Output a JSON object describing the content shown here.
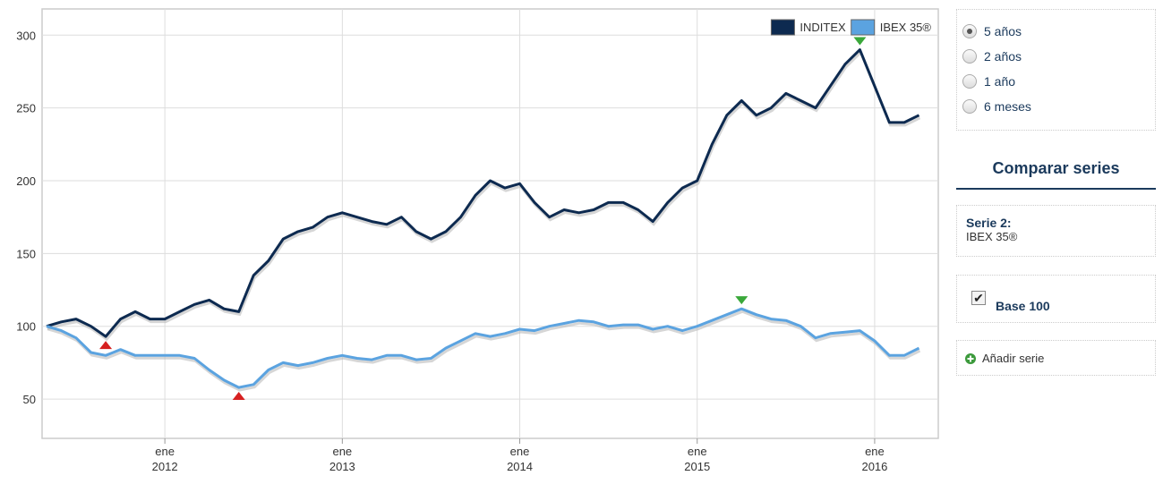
{
  "chart_data": {
    "type": "line",
    "x": [
      "2011-05",
      "2011-06",
      "2011-07",
      "2011-08",
      "2011-09",
      "2011-10",
      "2011-11",
      "2011-12",
      "2012-01",
      "2012-02",
      "2012-03",
      "2012-04",
      "2012-05",
      "2012-06",
      "2012-07",
      "2012-08",
      "2012-09",
      "2012-10",
      "2012-11",
      "2012-12",
      "2013-01",
      "2013-02",
      "2013-03",
      "2013-04",
      "2013-05",
      "2013-06",
      "2013-07",
      "2013-08",
      "2013-09",
      "2013-10",
      "2013-11",
      "2013-12",
      "2014-01",
      "2014-02",
      "2014-03",
      "2014-04",
      "2014-05",
      "2014-06",
      "2014-07",
      "2014-08",
      "2014-09",
      "2014-10",
      "2014-11",
      "2014-12",
      "2015-01",
      "2015-02",
      "2015-03",
      "2015-04",
      "2015-05",
      "2015-06",
      "2015-07",
      "2015-08",
      "2015-09",
      "2015-10",
      "2015-11",
      "2015-12",
      "2016-01",
      "2016-02",
      "2016-03",
      "2016-04"
    ],
    "series": [
      {
        "name": "INDITEX",
        "color": "#0d2a50",
        "values": [
          100,
          103,
          105,
          100,
          93,
          105,
          110,
          105,
          105,
          110,
          115,
          118,
          112,
          110,
          135,
          145,
          160,
          165,
          168,
          175,
          178,
          175,
          172,
          170,
          175,
          165,
          160,
          165,
          175,
          190,
          200,
          195,
          198,
          185,
          175,
          180,
          178,
          180,
          185,
          185,
          180,
          172,
          185,
          195,
          200,
          225,
          245,
          255,
          245,
          250,
          260,
          255,
          250,
          265,
          280,
          290,
          265,
          240,
          240,
          245
        ]
      },
      {
        "name": "IBEX 35®",
        "color": "#5ba3e0",
        "values": [
          100,
          97,
          92,
          82,
          80,
          84,
          80,
          80,
          80,
          80,
          78,
          70,
          63,
          58,
          60,
          70,
          75,
          73,
          75,
          78,
          80,
          78,
          77,
          80,
          80,
          77,
          78,
          85,
          90,
          95,
          93,
          95,
          98,
          97,
          100,
          102,
          104,
          103,
          100,
          101,
          101,
          98,
          100,
          97,
          100,
          104,
          108,
          112,
          108,
          105,
          104,
          100,
          92,
          95,
          96,
          97,
          90,
          80,
          80,
          85
        ]
      }
    ],
    "xlim": [
      "2011-05",
      "2016-05"
    ],
    "xticks": [
      {
        "value": "2012-01",
        "label": [
          "ene",
          "2012"
        ]
      },
      {
        "value": "2013-01",
        "label": [
          "ene",
          "2013"
        ]
      },
      {
        "value": "2014-01",
        "label": [
          "ene",
          "2014"
        ]
      },
      {
        "value": "2015-01",
        "label": [
          "ene",
          "2015"
        ]
      },
      {
        "value": "2016-01",
        "label": [
          "ene",
          "2016"
        ]
      }
    ],
    "ylim": [
      23,
      318
    ],
    "yticks": [
      50,
      100,
      150,
      200,
      250,
      300
    ],
    "grid": true,
    "legend": "top-right"
  },
  "controls": {
    "periods": [
      "5 años",
      "2 años",
      "1 año",
      "6 meses"
    ],
    "selected_period": 0,
    "compare_title": "Comparar series",
    "serie2_label": "Serie 2:",
    "serie2_value": "IBEX 35®",
    "base100_label": "Base 100",
    "base100_checked": true,
    "add_series": "Añadir serie"
  }
}
